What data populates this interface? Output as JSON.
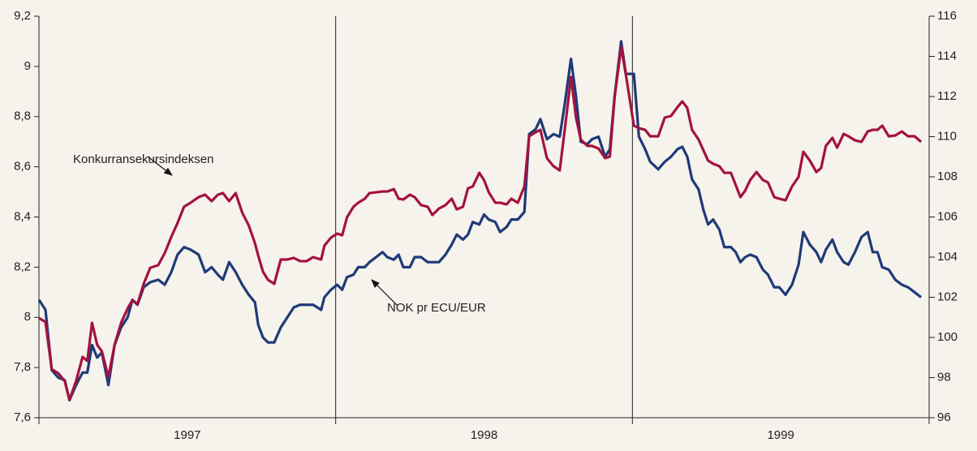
{
  "chart_data": {
    "type": "line",
    "ylim": [
      7.6,
      9.2
    ],
    "yticks": [
      {
        "value": 7.6,
        "label": "7,6"
      },
      {
        "value": 7.8,
        "label": "7,8"
      },
      {
        "value": 8,
        "label": "8"
      },
      {
        "value": 8.2,
        "label": "8,2"
      },
      {
        "value": 8.4,
        "label": "8,4"
      },
      {
        "value": 8.6,
        "label": "8,6"
      },
      {
        "value": 8.8,
        "label": "8,8"
      },
      {
        "value": 9,
        "label": "9"
      },
      {
        "value": 9.2,
        "label": "9,2"
      }
    ],
    "y2lim": [
      96,
      116
    ],
    "y2ticks": [
      96,
      98,
      100,
      102,
      104,
      106,
      108,
      110,
      112,
      114,
      116
    ],
    "xlim": [
      1997,
      2000
    ],
    "xticks": [
      1997,
      1998,
      1999,
      2000
    ],
    "x_labels": [
      "1997",
      "1998",
      "1999"
    ],
    "xgrid": true,
    "annotations": [
      "Konkurransekursindeksen",
      "NOK pr  ECU/EUR"
    ],
    "x": [
      1997.0,
      1997.022,
      1997.043,
      1997.065,
      1997.087,
      1997.103,
      1997.125,
      1997.147,
      1997.163,
      1997.179,
      1997.196,
      1997.212,
      1997.234,
      1997.255,
      1997.277,
      1997.299,
      1997.315,
      1997.332,
      1997.353,
      1997.375,
      1997.402,
      1997.424,
      1997.446,
      1997.467,
      1997.489,
      1997.511,
      1997.538,
      1997.56,
      1997.582,
      1997.603,
      1997.62,
      1997.641,
      1997.663,
      1997.685,
      1997.707,
      1997.728,
      1997.739,
      1997.755,
      1997.772,
      1997.793,
      1997.815,
      1997.837,
      1997.859,
      1997.88,
      1997.902,
      1997.924,
      1997.951,
      1997.962,
      1997.984,
      1998.005,
      1998.022,
      1998.038,
      1998.06,
      1998.076,
      1998.098,
      1998.114,
      1998.136,
      1998.158,
      1998.174,
      1998.196,
      1998.212,
      1998.228,
      1998.25,
      1998.266,
      1998.288,
      1998.31,
      1998.326,
      1998.348,
      1998.37,
      1998.391,
      1998.408,
      1998.429,
      1998.446,
      1998.462,
      1998.484,
      1998.5,
      1998.516,
      1998.538,
      1998.554,
      1998.576,
      1998.592,
      1998.614,
      1998.636,
      1998.652,
      1998.674,
      1998.69,
      1998.712,
      1998.734,
      1998.755,
      1998.772,
      1998.793,
      1998.81,
      1998.826,
      1998.848,
      1998.864,
      1998.886,
      1998.908,
      1998.924,
      1998.94,
      1998.962,
      1998.978,
      1999.005,
      1999.022,
      1999.043,
      1999.06,
      1999.087,
      1999.109,
      1999.13,
      1999.152,
      1999.168,
      1999.185,
      1999.201,
      1999.223,
      1999.239,
      1999.255,
      1999.272,
      1999.293,
      1999.31,
      1999.332,
      1999.348,
      1999.364,
      1999.38,
      1999.397,
      1999.418,
      1999.44,
      1999.457,
      1999.478,
      1999.495,
      1999.516,
      1999.538,
      1999.56,
      1999.576,
      1999.598,
      1999.62,
      1999.636,
      1999.652,
      1999.674,
      1999.69,
      1999.712,
      1999.728,
      1999.75,
      1999.772,
      1999.793,
      1999.81,
      1999.826,
      1999.842,
      1999.864,
      1999.886,
      1999.908,
      1999.929,
      1999.951,
      1999.973
    ],
    "series": [
      {
        "color": "#1f3a78",
        "axis": "y",
        "values": [
          8.07,
          8.03,
          7.79,
          7.76,
          7.75,
          7.67,
          7.73,
          7.78,
          7.78,
          7.89,
          7.84,
          7.86,
          7.73,
          7.89,
          7.96,
          8.0,
          8.07,
          8.05,
          8.12,
          8.14,
          8.15,
          8.13,
          8.18,
          8.25,
          8.28,
          8.27,
          8.25,
          8.18,
          8.2,
          8.17,
          8.15,
          8.22,
          8.18,
          8.13,
          8.09,
          8.06,
          7.97,
          7.92,
          7.9,
          7.9,
          7.96,
          8.0,
          8.04,
          8.05,
          8.05,
          8.05,
          8.03,
          8.08,
          8.11,
          8.13,
          8.11,
          8.16,
          8.17,
          8.2,
          8.2,
          8.22,
          8.24,
          8.26,
          8.24,
          8.23,
          8.25,
          8.2,
          8.2,
          8.24,
          8.24,
          8.22,
          8.22,
          8.22,
          8.25,
          8.29,
          8.33,
          8.31,
          8.33,
          8.38,
          8.37,
          8.41,
          8.39,
          8.38,
          8.34,
          8.36,
          8.39,
          8.39,
          8.42,
          8.73,
          8.75,
          8.79,
          8.71,
          8.73,
          8.72,
          8.85,
          9.03,
          8.88,
          8.7,
          8.69,
          8.71,
          8.72,
          8.64,
          8.67,
          8.88,
          9.1,
          8.97,
          8.97,
          8.72,
          8.67,
          8.62,
          8.59,
          8.62,
          8.64,
          8.67,
          8.68,
          8.64,
          8.55,
          8.51,
          8.43,
          8.37,
          8.39,
          8.35,
          8.28,
          8.28,
          8.26,
          8.22,
          8.24,
          8.25,
          8.24,
          8.19,
          8.17,
          8.12,
          8.12,
          8.09,
          8.13,
          8.21,
          8.34,
          8.29,
          8.26,
          8.22,
          8.27,
          8.31,
          8.26,
          8.22,
          8.21,
          8.26,
          8.32,
          8.34,
          8.26,
          8.26,
          8.2,
          8.19,
          8.15,
          8.13,
          8.12,
          8.1,
          8.08
        ]
      },
      {
        "color": "#a3123f",
        "axis": "y2",
        "values": [
          100.97,
          100.77,
          98.42,
          98.22,
          97.82,
          96.89,
          97.82,
          99.03,
          98.83,
          100.73,
          99.64,
          99.31,
          98.02,
          99.64,
          100.73,
          101.45,
          101.86,
          101.66,
          102.67,
          103.47,
          103.6,
          104.2,
          105.01,
          105.7,
          106.51,
          106.71,
          106.99,
          107.11,
          106.79,
          107.11,
          107.19,
          106.79,
          107.19,
          106.22,
          105.58,
          104.69,
          104.08,
          103.27,
          102.87,
          102.67,
          103.88,
          103.88,
          103.96,
          103.8,
          103.8,
          104.0,
          103.88,
          104.57,
          104.97,
          105.17,
          105.09,
          105.98,
          106.51,
          106.71,
          106.91,
          107.19,
          107.23,
          107.27,
          107.27,
          107.39,
          106.91,
          106.87,
          107.11,
          106.99,
          106.59,
          106.51,
          106.1,
          106.42,
          106.59,
          106.91,
          106.38,
          106.51,
          107.43,
          107.52,
          108.2,
          107.84,
          107.23,
          106.71,
          106.71,
          106.63,
          106.91,
          106.71,
          107.52,
          110.02,
          110.22,
          110.34,
          108.93,
          108.53,
          108.32,
          110.34,
          112.97,
          110.95,
          109.86,
          109.54,
          109.54,
          109.41,
          108.93,
          109.01,
          111.96,
          114.46,
          113.09,
          110.55,
          110.42,
          110.34,
          110.02,
          110.02,
          110.95,
          111.03,
          111.47,
          111.76,
          111.43,
          110.34,
          109.86,
          109.33,
          108.81,
          108.65,
          108.53,
          108.2,
          108.2,
          107.6,
          106.99,
          107.31,
          107.84,
          108.24,
          107.84,
          107.72,
          106.99,
          106.91,
          106.83,
          107.52,
          108.0,
          109.25,
          108.81,
          108.24,
          108.44,
          109.54,
          109.94,
          109.45,
          110.14,
          110.02,
          109.82,
          109.74,
          110.26,
          110.34,
          110.34,
          110.55,
          110.02,
          110.06,
          110.26,
          110.02,
          110.02,
          109.74
        ]
      }
    ]
  }
}
